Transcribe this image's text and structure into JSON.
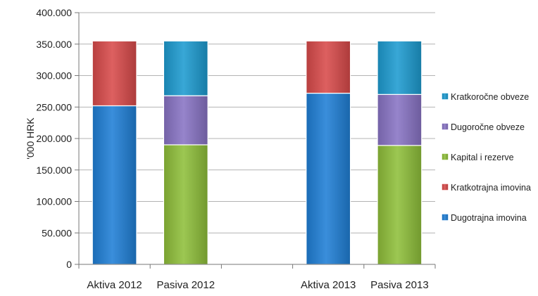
{
  "chart_data": {
    "type": "bar",
    "stacked": true,
    "categories": [
      "Aktiva 2012",
      "Pasiva 2012",
      "",
      "Aktiva 2013",
      "Pasiva 2013"
    ],
    "series": [
      {
        "name": "Dugotrajna imovina",
        "color": "#1f7fd6",
        "values": [
          252000,
          null,
          null,
          272000,
          null
        ]
      },
      {
        "name": "Kratkotrajna imovina",
        "color": "#d84a4a",
        "values": [
          103000,
          null,
          null,
          83000,
          null
        ]
      },
      {
        "name": "Kapital i rezerve",
        "color": "#8fbf3a",
        "values": [
          null,
          190000,
          null,
          null,
          189000
        ]
      },
      {
        "name": "Dugoročne obveze",
        "color": "#8873c4",
        "values": [
          null,
          78000,
          null,
          null,
          81000
        ]
      },
      {
        "name": "Kratkoročne obveze",
        "color": "#1d9bd0",
        "values": [
          null,
          87000,
          null,
          null,
          85000
        ]
      }
    ],
    "ylabel": "'000 HRK",
    "ylim": [
      0,
      400000
    ],
    "yticks": [
      "0",
      "50.000",
      "100.000",
      "150.000",
      "200.000",
      "250.000",
      "300.000",
      "350.000",
      "400.000"
    ],
    "grid": true,
    "legend_position": "right",
    "legend_order": [
      "Kratkoročne obveze",
      "Dugoročne obveze",
      "Kapital i rezerve",
      "Kratkotrajna imovina",
      "Dugotrajna imovina"
    ]
  }
}
